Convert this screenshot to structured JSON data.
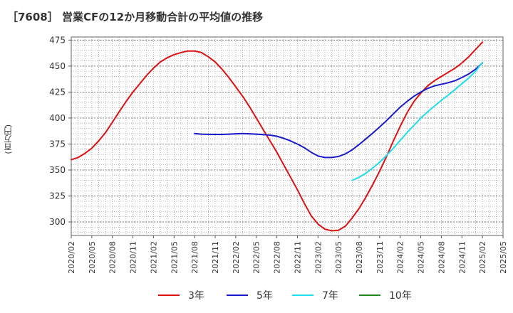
{
  "chart_data": {
    "type": "line",
    "title": "［7608］ 営業CFの12か月移動合計の平均値の推移",
    "ylabel": "(百万円)",
    "xlabel": "",
    "ylim": [
      287,
      478
    ],
    "y_ticks": [
      300,
      325,
      350,
      375,
      400,
      425,
      450,
      475
    ],
    "x_ticks": [
      "2020/02",
      "2020/05",
      "2020/08",
      "2020/11",
      "2021/02",
      "2021/05",
      "2021/08",
      "2021/11",
      "2022/02",
      "2022/05",
      "2022/08",
      "2022/11",
      "2023/02",
      "2023/05",
      "2023/08",
      "2023/11",
      "2024/02",
      "2024/05",
      "2024/08",
      "2024/11",
      "2025/02",
      "2025/05"
    ],
    "grid": true,
    "legend_position": "bottom",
    "series": [
      {
        "name": "3年",
        "color": "#dd1111",
        "points": [
          [
            "2020/02",
            360
          ],
          [
            "2020/03",
            362
          ],
          [
            "2020/04",
            366
          ],
          [
            "2020/05",
            371
          ],
          [
            "2020/06",
            378
          ],
          [
            "2020/07",
            386
          ],
          [
            "2020/08",
            396
          ],
          [
            "2020/09",
            406
          ],
          [
            "2020/10",
            416
          ],
          [
            "2020/11",
            425
          ],
          [
            "2020/12",
            433
          ],
          [
            "2021/01",
            441
          ],
          [
            "2021/02",
            448
          ],
          [
            "2021/03",
            454
          ],
          [
            "2021/04",
            458
          ],
          [
            "2021/05",
            461
          ],
          [
            "2021/06",
            463
          ],
          [
            "2021/07",
            464.5
          ],
          [
            "2021/08",
            464.5
          ],
          [
            "2021/09",
            463
          ],
          [
            "2021/10",
            459
          ],
          [
            "2021/11",
            454
          ],
          [
            "2021/12",
            447
          ],
          [
            "2022/01",
            439
          ],
          [
            "2022/02",
            430
          ],
          [
            "2022/03",
            421
          ],
          [
            "2022/04",
            411
          ],
          [
            "2022/05",
            400
          ],
          [
            "2022/06",
            389
          ],
          [
            "2022/07",
            378
          ],
          [
            "2022/08",
            367
          ],
          [
            "2022/09",
            355
          ],
          [
            "2022/10",
            343
          ],
          [
            "2022/11",
            331
          ],
          [
            "2022/12",
            318
          ],
          [
            "2023/01",
            306
          ],
          [
            "2023/02",
            298
          ],
          [
            "2023/03",
            293
          ],
          [
            "2023/04",
            291.5
          ],
          [
            "2023/05",
            292
          ],
          [
            "2023/06",
            296
          ],
          [
            "2023/07",
            304
          ],
          [
            "2023/08",
            313
          ],
          [
            "2023/09",
            324
          ],
          [
            "2023/10",
            336
          ],
          [
            "2023/11",
            349
          ],
          [
            "2023/12",
            363
          ],
          [
            "2024/01",
            378
          ],
          [
            "2024/02",
            392
          ],
          [
            "2024/03",
            405
          ],
          [
            "2024/04",
            416
          ],
          [
            "2024/05",
            424
          ],
          [
            "2024/06",
            431
          ],
          [
            "2024/07",
            436
          ],
          [
            "2024/08",
            440
          ],
          [
            "2024/09",
            444
          ],
          [
            "2024/10",
            448
          ],
          [
            "2024/11",
            453
          ],
          [
            "2024/12",
            459
          ],
          [
            "2025/01",
            466
          ],
          [
            "2025/02",
            473
          ]
        ]
      },
      {
        "name": "5年",
        "color": "#1a1acc",
        "points": [
          [
            "2021/08",
            385
          ],
          [
            "2021/09",
            384.5
          ],
          [
            "2021/10",
            384.3
          ],
          [
            "2021/11",
            384.2
          ],
          [
            "2021/12",
            384.2
          ],
          [
            "2022/01",
            384.5
          ],
          [
            "2022/02",
            384.8
          ],
          [
            "2022/03",
            385
          ],
          [
            "2022/04",
            384.8
          ],
          [
            "2022/05",
            384.5
          ],
          [
            "2022/06",
            384
          ],
          [
            "2022/07",
            383.5
          ],
          [
            "2022/08",
            382.5
          ],
          [
            "2022/09",
            380.5
          ],
          [
            "2022/10",
            378
          ],
          [
            "2022/11",
            375
          ],
          [
            "2022/12",
            371.5
          ],
          [
            "2023/01",
            367
          ],
          [
            "2023/02",
            363.5
          ],
          [
            "2023/03",
            362
          ],
          [
            "2023/04",
            362
          ],
          [
            "2023/05",
            363
          ],
          [
            "2023/06",
            365.5
          ],
          [
            "2023/07",
            369.5
          ],
          [
            "2023/08",
            374.5
          ],
          [
            "2023/09",
            380
          ],
          [
            "2023/10",
            385.5
          ],
          [
            "2023/11",
            391.5
          ],
          [
            "2023/12",
            397.5
          ],
          [
            "2024/01",
            404
          ],
          [
            "2024/02",
            410.5
          ],
          [
            "2024/03",
            416
          ],
          [
            "2024/04",
            421
          ],
          [
            "2024/05",
            425
          ],
          [
            "2024/06",
            428.5
          ],
          [
            "2024/07",
            431
          ],
          [
            "2024/08",
            432.5
          ],
          [
            "2024/09",
            434
          ],
          [
            "2024/10",
            436
          ],
          [
            "2024/11",
            439
          ],
          [
            "2024/12",
            442.5
          ],
          [
            "2025/01",
            447
          ],
          [
            "2025/02",
            453
          ]
        ]
      },
      {
        "name": "7年",
        "color": "#22ddee",
        "points": [
          [
            "2023/07",
            340
          ],
          [
            "2023/08",
            343
          ],
          [
            "2023/09",
            347
          ],
          [
            "2023/10",
            352
          ],
          [
            "2023/11",
            357.5
          ],
          [
            "2023/12",
            364
          ],
          [
            "2024/01",
            371
          ],
          [
            "2024/02",
            378.5
          ],
          [
            "2024/03",
            386
          ],
          [
            "2024/04",
            393
          ],
          [
            "2024/05",
            400
          ],
          [
            "2024/06",
            406
          ],
          [
            "2024/07",
            411.5
          ],
          [
            "2024/08",
            417
          ],
          [
            "2024/09",
            422
          ],
          [
            "2024/10",
            427.5
          ],
          [
            "2024/11",
            433
          ],
          [
            "2024/12",
            438.5
          ],
          [
            "2025/01",
            445
          ],
          [
            "2025/02",
            453.5
          ]
        ]
      },
      {
        "name": "10年",
        "color": "#228822",
        "points": []
      }
    ]
  }
}
